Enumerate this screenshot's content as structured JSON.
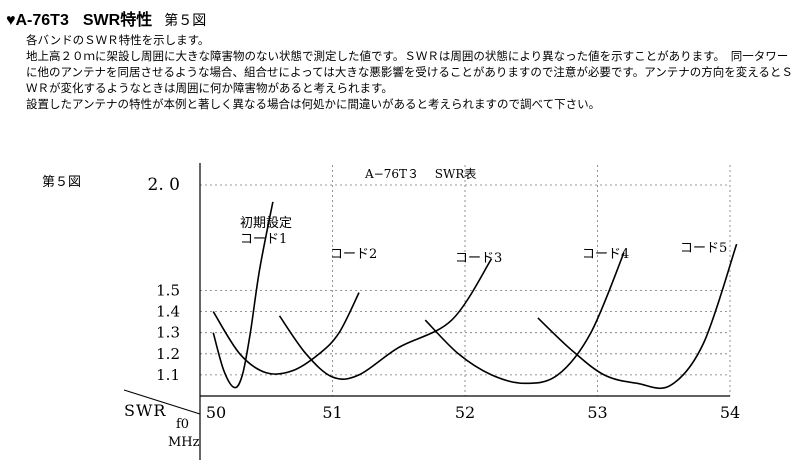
{
  "heading": {
    "bullet": "♥",
    "model": "A-76T3",
    "title": "SWR特性",
    "figure": "第５図"
  },
  "paragraphs": [
    "各バンドのＳＷＲ特性を示します。",
    "地上高２０ｍに架設し周囲に大きな障害物のない状態で測定した値です。ＳＷＲは周囲の状態により異なった値を示すことがあります。　同一タワーに他のアンテナを同居させるような場合、組合せによっては大きな悪影響を受けることがありますので注意が必要です。アンテナの方向を変えるとＳＷＲが変化するようなときは周囲に何か障害物があると考えられます。",
    "設置したアンテナの特性が本例と著しく異なる場合は何処かに間違いがあると考えられますので調べて下さい。"
  ],
  "figure_label": "第５図",
  "chart_data": {
    "type": "line",
    "title": "A−76T３　 SWR表",
    "ylabel": "SWR",
    "xlabel": "f0 MHz",
    "xlim": [
      50,
      54
    ],
    "ylim": [
      1.0,
      2.0
    ],
    "x_ticks": [
      50,
      51,
      52,
      53,
      54
    ],
    "y_ticks": [
      1.1,
      1.2,
      1.3,
      1.4,
      1.5,
      2.0
    ],
    "y_tick_labels": [
      "1.1",
      "1.2",
      "1.3",
      "1.4",
      "1.5",
      "2. 0"
    ],
    "grid": true,
    "series": [
      {
        "name": "初期設定\nコード1",
        "x": [
          50.1,
          50.18,
          50.26,
          50.32,
          50.38,
          50.45,
          50.55
        ],
        "y": [
          1.3,
          1.12,
          1.04,
          1.1,
          1.3,
          1.6,
          1.92
        ]
      },
      {
        "name": "コード2",
        "x": [
          50.1,
          50.3,
          50.5,
          50.7,
          50.9,
          51.05,
          51.2
        ],
        "y": [
          1.4,
          1.2,
          1.11,
          1.12,
          1.2,
          1.3,
          1.49
        ]
      },
      {
        "name": "コード3",
        "x": [
          50.6,
          50.8,
          51.0,
          51.2,
          51.5,
          51.9,
          52.2
        ],
        "y": [
          1.38,
          1.2,
          1.09,
          1.1,
          1.23,
          1.36,
          1.65
        ]
      },
      {
        "name": "コード4",
        "x": [
          51.7,
          51.95,
          52.2,
          52.45,
          52.7,
          52.95,
          53.2
        ],
        "y": [
          1.36,
          1.2,
          1.1,
          1.06,
          1.1,
          1.3,
          1.68
        ]
      },
      {
        "name": "コード5",
        "x": [
          52.55,
          52.8,
          53.05,
          53.3,
          53.55,
          53.8,
          54.05
        ],
        "y": [
          1.37,
          1.22,
          1.1,
          1.06,
          1.05,
          1.25,
          1.72
        ]
      }
    ]
  }
}
